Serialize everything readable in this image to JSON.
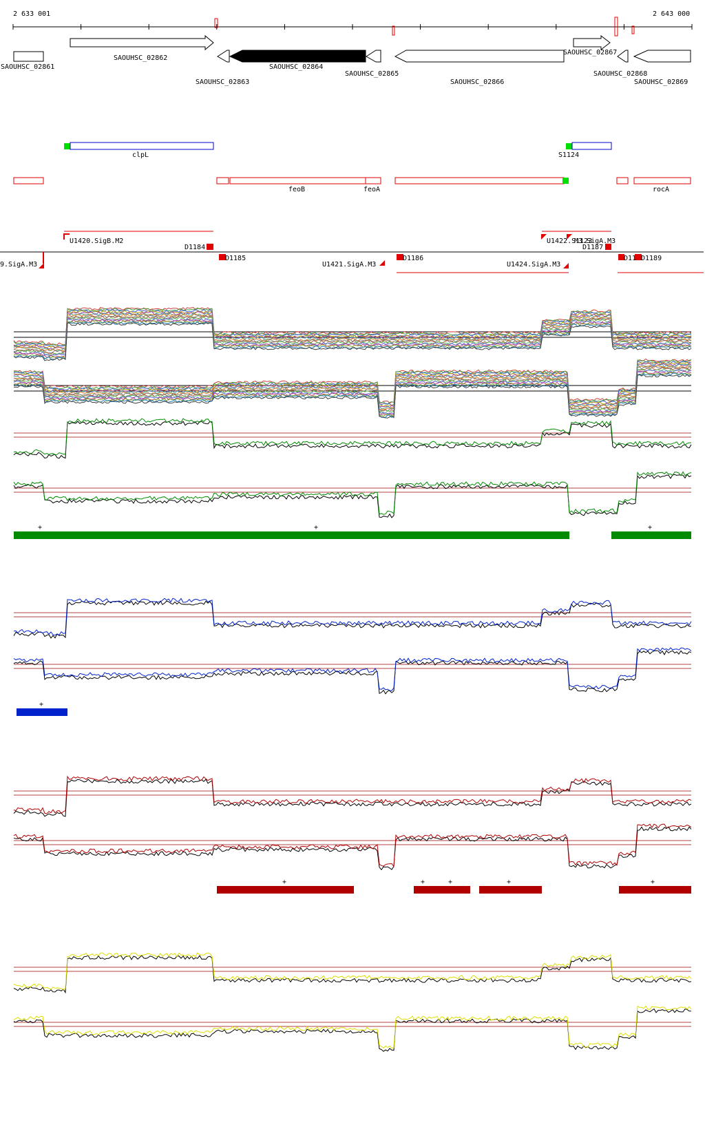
{
  "coordinates": {
    "start": "2 633 001",
    "end": "2 643 000"
  },
  "genes": [
    {
      "name": "SAOUHSC_02861",
      "strand": "+",
      "filled": false
    },
    {
      "name": "SAOUHSC_02862",
      "strand": "+",
      "filled": false
    },
    {
      "name": "SAOUHSC_02863",
      "strand": "-",
      "filled": false
    },
    {
      "name": "SAOUHSC_02864",
      "strand": "-",
      "filled": true
    },
    {
      "name": "SAOUHSC_02865",
      "strand": "-",
      "filled": false
    },
    {
      "name": "SAOUHSC_02866",
      "strand": "-",
      "filled": false
    },
    {
      "name": "SAOUHSC_02867",
      "strand": "+",
      "filled": false
    },
    {
      "name": "SAOUHSC_02868",
      "strand": "-",
      "filled": false
    },
    {
      "name": "SAOUHSC_02869",
      "strand": "-",
      "filled": false
    }
  ],
  "blue_features": [
    {
      "label": "clpL"
    },
    {
      "label": "S1124"
    }
  ],
  "red_features": [
    {
      "label": "feoB"
    },
    {
      "label": "feoA"
    },
    {
      "label": "rocA"
    }
  ],
  "regulatory_labels": [
    "U1420.SigB.M2",
    "D1184",
    "D1185",
    "9.SigA.M3",
    "U1421.SigA.M3",
    "D1186",
    "U1424.SigA.M3",
    "U1422.S1123",
    "M3.SigA.M3",
    "D1187",
    "D11",
    "D1189"
  ],
  "segment_marks": {
    "green": [
      "+",
      "+",
      "+"
    ],
    "blue": [
      "+"
    ],
    "red": [
      "+",
      "+",
      "+",
      "+",
      "+"
    ]
  },
  "colors": {
    "green": "#008a00",
    "blue": "#0022cc",
    "red": "#b00000",
    "yellow": "#dede00",
    "gene_fill": "#000000",
    "feature_red": "#e00000",
    "feature_blue": "#0000cc",
    "tss_green": "#00e000"
  }
}
